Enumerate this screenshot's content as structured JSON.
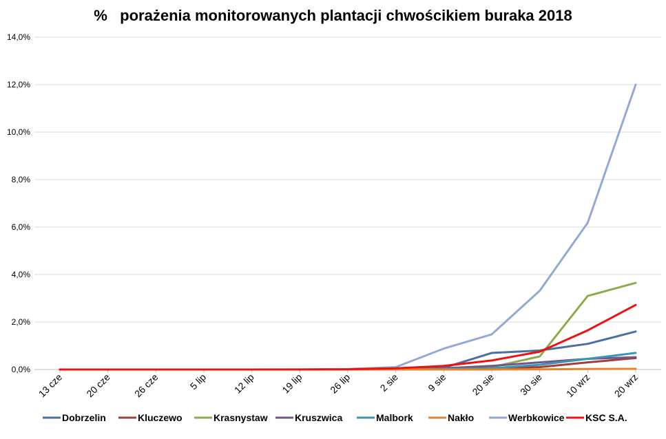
{
  "chart_data": {
    "type": "line",
    "title": "%   porażenia monitorowanych plantacji chwościkiem buraka 2018",
    "xlabel": "",
    "ylabel": "",
    "categories": [
      "13 cze",
      "20 cze",
      "26 cze",
      "5 lip",
      "12 lip",
      "19 lip",
      "26 lip",
      "2 sie",
      "9 sie",
      "20 sie",
      "30 sie",
      "10 wrz",
      "20 wrz"
    ],
    "y_ticks": [
      "0,0%",
      "2,0%",
      "4,0%",
      "6,0%",
      "8,0%",
      "10,0%",
      "12,0%",
      "14,0%"
    ],
    "ylim": [
      0,
      14
    ],
    "grid": true,
    "legend_position": "bottom",
    "series": [
      {
        "name": "Dobrzelin",
        "color": "#4a6fa5",
        "values": [
          0,
          0,
          0,
          0,
          0,
          0,
          0,
          0.02,
          0.07,
          0.7,
          0.8,
          1.08,
          1.6
        ]
      },
      {
        "name": "Kluczewo",
        "color": "#a33c3a",
        "values": [
          0,
          0,
          0,
          0,
          0,
          0,
          0,
          0,
          0.02,
          0.05,
          0.1,
          0.3,
          0.48
        ]
      },
      {
        "name": "Krasnystaw",
        "color": "#8cab4a",
        "values": [
          0,
          0,
          0,
          0,
          0,
          0,
          0,
          0,
          0.02,
          0.1,
          0.55,
          3.1,
          3.65
        ]
      },
      {
        "name": "Kruszwica",
        "color": "#70578a",
        "values": [
          0,
          0,
          0,
          0,
          0,
          0,
          0,
          0,
          0.05,
          0.15,
          0.3,
          0.45,
          0.52
        ]
      },
      {
        "name": "Malbork",
        "color": "#3a96ae",
        "values": [
          0,
          0,
          0,
          0,
          0,
          0,
          0,
          0,
          0.02,
          0.05,
          0.2,
          0.45,
          0.7
        ]
      },
      {
        "name": "Nakło",
        "color": "#e8822e",
        "values": [
          0,
          0,
          0,
          0,
          0,
          0,
          0,
          0,
          0,
          0,
          0.01,
          0.02,
          0.03
        ]
      },
      {
        "name": "Werbkowice",
        "color": "#93a9d1",
        "values": [
          0,
          0,
          0,
          0,
          0,
          0.01,
          0.02,
          0.1,
          0.88,
          1.48,
          3.32,
          6.18,
          12.0
        ]
      },
      {
        "name": "KSC S.A.",
        "color": "#ee1111",
        "values": [
          0,
          0,
          0,
          0,
          0,
          0,
          0.01,
          0.05,
          0.15,
          0.38,
          0.75,
          1.65,
          2.72
        ]
      }
    ]
  }
}
